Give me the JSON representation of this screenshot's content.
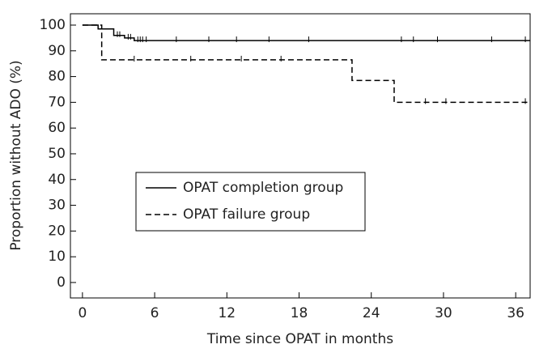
{
  "chart_data": {
    "type": "line",
    "xlabel": "Time since OPAT in months",
    "ylabel": "Proportion without ADO (%)",
    "xlim": [
      -1,
      37.2
    ],
    "ylim": [
      -6,
      104.4
    ],
    "xticks": [
      0,
      6,
      12,
      18,
      24,
      30,
      36
    ],
    "yticks": [
      0,
      10,
      20,
      30,
      40,
      50,
      60,
      70,
      80,
      90,
      100
    ],
    "series": [
      {
        "name": "OPAT completion group",
        "color": "#000000",
        "dash": "solid",
        "x": [
          0,
          1.3,
          1.3,
          2.6,
          2.6,
          3.5,
          3.5,
          4.3,
          4.3,
          37.2
        ],
        "values": [
          100,
          100,
          98.5,
          98.5,
          96,
          96,
          95,
          95,
          94,
          94
        ],
        "censored": {
          "x": [
            2.9,
            3.1,
            3.8,
            4.0,
            4.6,
            4.8,
            5.0,
            5.3,
            7.8,
            10.5,
            12.8,
            15.5,
            18.8,
            26.5,
            27.5,
            29.5,
            34,
            36.8
          ],
          "values": [
            96,
            96,
            95,
            95,
            94,
            94,
            94,
            94,
            94,
            94,
            94,
            94,
            94,
            94,
            94,
            94,
            94,
            94
          ]
        }
      },
      {
        "name": "OPAT failure group",
        "color": "#000000",
        "dash": "dashed",
        "x": [
          0,
          1.6,
          1.6,
          22.4,
          22.4,
          25.9,
          25.9,
          37.2
        ],
        "values": [
          100,
          100,
          86.5,
          86.5,
          78.5,
          78.5,
          70,
          70
        ],
        "censored": {
          "x": [
            4.3,
            9,
            13.2,
            16.5,
            28.5,
            30.2,
            36.8
          ],
          "values": [
            86.5,
            86.5,
            86.5,
            86.5,
            70,
            70,
            70
          ]
        }
      }
    ],
    "legend": "center-left"
  }
}
